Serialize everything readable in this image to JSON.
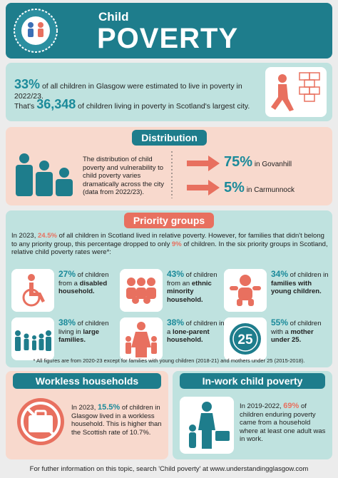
{
  "header": {
    "title_small": "Child",
    "title_large": "POVERTY"
  },
  "intro": {
    "line1": {
      "highlight": "33%",
      "text": "of all children in Glasgow were estimated to live in poverty in 2022/23."
    },
    "line2": {
      "before": "That's",
      "highlight": "36,348",
      "after": "of children living in poverty in Scotland's largest city."
    }
  },
  "distribution": {
    "heading": "Distribution",
    "text": "The distribution of child poverty and vulnerability to child poverty varies dramatically across the city (data from 2022/23).",
    "stats": [
      {
        "value": "75%",
        "label": "in Govanhill"
      },
      {
        "value": "5%",
        "label": "in Carmunnock"
      }
    ]
  },
  "priority": {
    "heading": "Priority groups",
    "intro": {
      "part1": "In 2023,",
      "highlight1": "24.5%",
      "part2": "of all children in Scotland lived in relative poverty. However, for families that didn't belong to any priority group, this percentage dropped to only",
      "highlight2": "9%",
      "part3": "of children. In the six priority groups in Scotland, relative child poverty rates were*:"
    },
    "items": [
      {
        "highlight": "27%",
        "text": "of children from a",
        "bold": "disabled household."
      },
      {
        "highlight": "43%",
        "text": "of children from an",
        "bold": "ethnic minority household."
      },
      {
        "highlight": "34%",
        "text": "of children in",
        "bold": "families with young children."
      },
      {
        "highlight": "38%",
        "text": "of children living in",
        "bold": "large families."
      },
      {
        "highlight": "38%",
        "text": "of children in a",
        "bold": "lone-parent household."
      },
      {
        "highlight": "55%",
        "text": "of children with a",
        "bold": "mother under 25."
      }
    ],
    "icon_label": "25",
    "footnote": "* All figures are from 2020-23 except for families with young children (2018-21) and mothers under 25 (2015-2018)."
  },
  "workless": {
    "heading": "Workless households",
    "before": "In 2023,",
    "highlight": "15.5%",
    "after": "of children in Glasgow lived in a workless household. This is higher than the Scottish rate of 10.7%."
  },
  "inwork": {
    "heading": "In-work child poverty",
    "before": "In 2019-2022,",
    "highlight": "69%",
    "after": "of children enduring poverty came from a household where at least one adult was in work."
  },
  "footer": "For futher information on this topic, search 'Child poverty' at www.understandingglasgow.com"
}
